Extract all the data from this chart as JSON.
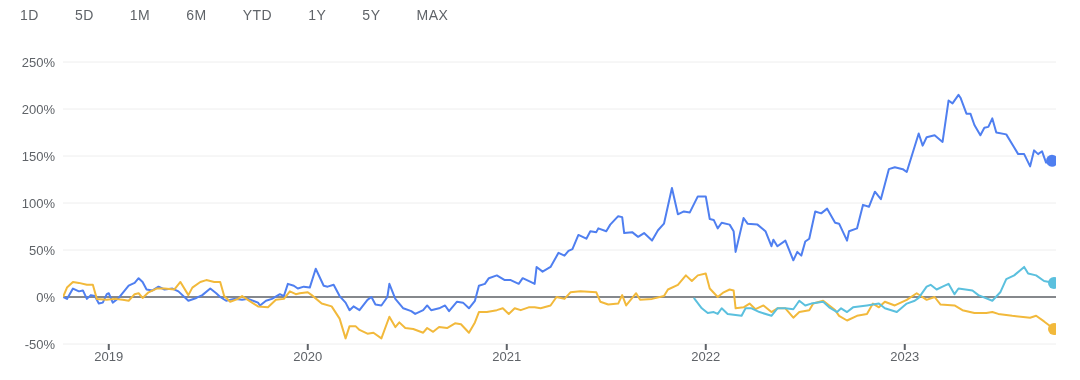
{
  "chart_data": {
    "type": "line",
    "annotations": [
      "1D",
      "5D",
      "1M",
      "6M",
      "YTD",
      "1Y",
      "5Y",
      "MAX"
    ],
    "xlim": [
      2018.77,
      2023.76
    ],
    "xticks": [
      2019,
      2020,
      2021,
      2022,
      2023
    ],
    "ylim": [
      -50,
      250
    ],
    "yticks": [
      {
        "value": -50,
        "label": "-50%"
      },
      {
        "value": 0,
        "label": "0%"
      },
      {
        "value": 50,
        "label": "50%"
      },
      {
        "value": 100,
        "label": "100%"
      },
      {
        "value": 150,
        "label": "150%"
      },
      {
        "value": 200,
        "label": "200%"
      },
      {
        "value": 250,
        "label": "250%"
      }
    ],
    "grid": "y",
    "legend": false,
    "line_style": "solid",
    "ref_lines": [
      {
        "axis": "y",
        "value": 0,
        "color": "#5f6368"
      }
    ],
    "series": [
      {
        "color": "#4f7ff0",
        "x": [
          2018.77,
          2018.79,
          2018.82,
          2018.85,
          2018.87,
          2018.89,
          2018.91,
          2018.93,
          2018.95,
          2018.97,
          2018.99,
          2019.0,
          2019.02,
          2019.05,
          2019.1,
          2019.13,
          2019.15,
          2019.17,
          2019.19,
          2019.22,
          2019.25,
          2019.28,
          2019.32,
          2019.35,
          2019.4,
          2019.44,
          2019.47,
          2019.51,
          2019.54,
          2019.56,
          2019.59,
          2019.63,
          2019.67,
          2019.7,
          2019.75,
          2019.76,
          2019.79,
          2019.82,
          2019.86,
          2019.88,
          2019.9,
          2019.93,
          2019.95,
          2019.98,
          2020.01,
          2020.04,
          2020.08,
          2020.1,
          2020.13,
          2020.16,
          2020.19,
          2020.21,
          2020.23,
          2020.26,
          2020.3,
          2020.32,
          2020.34,
          2020.37,
          2020.4,
          2020.41,
          2020.44,
          2020.48,
          2020.52,
          2020.54,
          2020.58,
          2020.6,
          2020.62,
          2020.66,
          2020.69,
          2020.71,
          2020.75,
          2020.78,
          2020.81,
          2020.84,
          2020.86,
          2020.89,
          2020.91,
          2020.95,
          2020.99,
          2021.02,
          2021.06,
          2021.08,
          2021.12,
          2021.14,
          2021.15,
          2021.18,
          2021.22,
          2021.26,
          2021.29,
          2021.31,
          2021.33,
          2021.36,
          2021.4,
          2021.42,
          2021.45,
          2021.46,
          2021.5,
          2021.52,
          2021.56,
          2021.58,
          2021.59,
          2021.63,
          2021.66,
          2021.69,
          2021.73,
          2021.76,
          2021.79,
          2021.83,
          2021.86,
          2021.89,
          2021.92,
          2021.96,
          2022.0,
          2022.02,
          2022.04,
          2022.06,
          2022.08,
          2022.12,
          2022.14,
          2022.15,
          2022.17,
          2022.19,
          2022.21,
          2022.26,
          2022.3,
          2022.33,
          2022.34,
          2022.36,
          2022.4,
          2022.44,
          2022.46,
          2022.48,
          2022.5,
          2022.52,
          2022.55,
          2022.58,
          2022.61,
          2022.65,
          2022.67,
          2022.71,
          2022.72,
          2022.76,
          2022.79,
          2022.82,
          2022.85,
          2022.88,
          2022.92,
          2022.95,
          2022.99,
          2023.01,
          2023.07,
          2023.09,
          2023.11,
          2023.15,
          2023.19,
          2023.22,
          2023.24,
          2023.27,
          2023.28,
          2023.31,
          2023.33,
          2023.35,
          2023.38,
          2023.4,
          2023.42,
          2023.44,
          2023.46,
          2023.51,
          2023.55,
          2023.57,
          2023.6,
          2023.63,
          2023.65,
          2023.67,
          2023.69,
          2023.71,
          2023.74
        ],
        "values": [
          0,
          -2,
          9,
          6,
          7,
          -2,
          2,
          1,
          -7,
          -6,
          3,
          4,
          -6,
          -1,
          12,
          15,
          20,
          16,
          8,
          7,
          11,
          8,
          9,
          6,
          -4,
          -1,
          2,
          9,
          4,
          0,
          -4,
          -2,
          -3,
          -2,
          -6,
          -9,
          -4,
          -2,
          3,
          1,
          14,
          12,
          9,
          11,
          10,
          30,
          12,
          11,
          13,
          1,
          -6,
          -14,
          -10,
          -14,
          -3,
          0,
          -8,
          -9,
          0,
          14,
          -2,
          -12,
          -15,
          -18,
          -14,
          -9,
          -14,
          -12,
          -9,
          -15,
          -5,
          -6,
          -12,
          -4,
          12,
          14,
          20,
          23,
          18,
          18,
          14,
          20,
          16,
          14,
          32,
          27,
          32,
          47,
          44,
          49,
          51,
          66,
          62,
          70,
          69,
          73,
          70,
          77,
          86,
          85,
          68,
          69,
          64,
          68,
          60,
          71,
          78,
          116,
          88,
          91,
          90,
          107,
          107,
          83,
          82,
          73,
          79,
          77,
          70,
          48,
          66,
          84,
          78,
          77,
          70,
          54,
          61,
          54,
          60,
          39,
          48,
          44,
          59,
          62,
          91,
          89,
          94,
          79,
          78,
          60,
          70,
          73,
          98,
          96,
          112,
          104,
          136,
          138,
          136,
          133,
          174,
          161,
          170,
          172,
          165,
          209,
          206,
          215,
          212,
          195,
          195,
          183,
          172,
          180,
          181,
          190,
          175,
          173,
          159,
          152,
          152,
          139,
          156,
          152,
          155,
          143,
          145
        ]
      },
      {
        "color": "#f2b93b",
        "x": [
          2018.77,
          2018.79,
          2018.82,
          2018.85,
          2018.89,
          2018.92,
          2018.94,
          2018.99,
          2019.03,
          2019.07,
          2019.1,
          2019.13,
          2019.15,
          2019.17,
          2019.2,
          2019.24,
          2019.28,
          2019.33,
          2019.36,
          2019.4,
          2019.42,
          2019.46,
          2019.49,
          2019.53,
          2019.56,
          2019.58,
          2019.61,
          2019.65,
          2019.67,
          2019.72,
          2019.75,
          2019.8,
          2019.84,
          2019.88,
          2019.91,
          2019.94,
          2019.96,
          2020.0,
          2020.02,
          2020.07,
          2020.12,
          2020.16,
          2020.19,
          2020.21,
          2020.24,
          2020.26,
          2020.3,
          2020.33,
          2020.37,
          2020.41,
          2020.44,
          2020.46,
          2020.49,
          2020.53,
          2020.58,
          2020.6,
          2020.63,
          2020.66,
          2020.7,
          2020.74,
          2020.77,
          2020.81,
          2020.84,
          2020.86,
          2020.9,
          2020.95,
          2020.98,
          2021.01,
          2021.04,
          2021.07,
          2021.11,
          2021.14,
          2021.17,
          2021.22,
          2021.25,
          2021.29,
          2021.32,
          2021.37,
          2021.45,
          2021.47,
          2021.51,
          2021.56,
          2021.58,
          2021.6,
          2021.65,
          2021.67,
          2021.73,
          2021.79,
          2021.81,
          2021.86,
          2021.9,
          2021.93,
          2021.96,
          2022.0,
          2022.02,
          2022.06,
          2022.09,
          2022.12,
          2022.14,
          2022.15,
          2022.19,
          2022.22,
          2022.25,
          2022.29,
          2022.33,
          2022.36,
          2022.4,
          2022.44,
          2022.47,
          2022.52,
          2022.54,
          2022.59,
          2022.65,
          2022.67,
          2022.71,
          2022.76,
          2022.81,
          2022.84,
          2022.87,
          2022.9,
          2022.95,
          2023.01,
          2023.06,
          2023.11,
          2023.15,
          2023.18,
          2023.25,
          2023.29,
          2023.35,
          2023.41,
          2023.44,
          2023.47,
          2023.54,
          2023.63,
          2023.66,
          2023.7,
          2023.75
        ],
        "values": [
          0,
          10,
          16,
          15,
          13,
          13,
          -2,
          -3,
          -2,
          -3,
          -4,
          3,
          4,
          -1,
          5,
          9,
          9,
          8,
          16,
          2,
          10,
          16,
          18,
          16,
          16,
          1,
          -5,
          -2,
          1,
          -6,
          -10,
          -11,
          -3,
          -2,
          6,
          3,
          4,
          5,
          2,
          -7,
          -10,
          -23,
          -44,
          -31,
          -31,
          -35,
          -39,
          -38,
          -44,
          -21,
          -32,
          -27,
          -33,
          -34,
          -38,
          -33,
          -37,
          -32,
          -33,
          -28,
          -29,
          -38,
          -27,
          -16,
          -16,
          -14,
          -12,
          -18,
          -12,
          -14,
          -11,
          -11,
          -12,
          -9,
          0,
          -2,
          5,
          6,
          5,
          -5,
          -8,
          -7,
          2,
          -9,
          4,
          -3,
          -2,
          1,
          8,
          13,
          23,
          17,
          23,
          25,
          9,
          0,
          5,
          8,
          7,
          -12,
          -11,
          -7,
          -13,
          -9,
          -16,
          -12,
          -12,
          -22,
          -16,
          -14,
          -7,
          -4,
          -14,
          -20,
          -25,
          -20,
          -18,
          -7,
          -11,
          -5,
          -9,
          -3,
          4,
          -3,
          0,
          -8,
          -9,
          -14,
          -17,
          -17,
          -16,
          -18,
          -20,
          -22,
          -20,
          -26,
          -34
        ]
      },
      {
        "color": "#5bc0de",
        "x": [
          2021.94,
          2021.98,
          2022.01,
          2022.04,
          2022.06,
          2022.08,
          2022.11,
          2022.18,
          2022.2,
          2022.23,
          2022.27,
          2022.33,
          2022.36,
          2022.4,
          2022.44,
          2022.47,
          2022.5,
          2022.53,
          2022.59,
          2022.62,
          2022.66,
          2022.68,
          2022.71,
          2022.74,
          2022.81,
          2022.87,
          2022.9,
          2022.96,
          2023.01,
          2023.05,
          2023.07,
          2023.11,
          2023.13,
          2023.16,
          2023.19,
          2023.22,
          2023.25,
          2023.27,
          2023.34,
          2023.37,
          2023.44,
          2023.48,
          2023.51,
          2023.55,
          2023.6,
          2023.62,
          2023.66,
          2023.7,
          2023.75
        ],
        "values": [
          -1,
          -12,
          -17,
          -16,
          -18,
          -12,
          -18,
          -20,
          -12,
          -12,
          -16,
          -20,
          -12,
          -12,
          -13,
          -4,
          -9,
          -7,
          -5,
          -11,
          -16,
          -12,
          -16,
          -11,
          -9,
          -7,
          -12,
          -16,
          -7,
          -4,
          -1,
          11,
          13,
          8,
          11,
          14,
          3,
          9,
          7,
          2,
          -4,
          5,
          19,
          23,
          32,
          25,
          23,
          17,
          15
        ]
      }
    ]
  }
}
